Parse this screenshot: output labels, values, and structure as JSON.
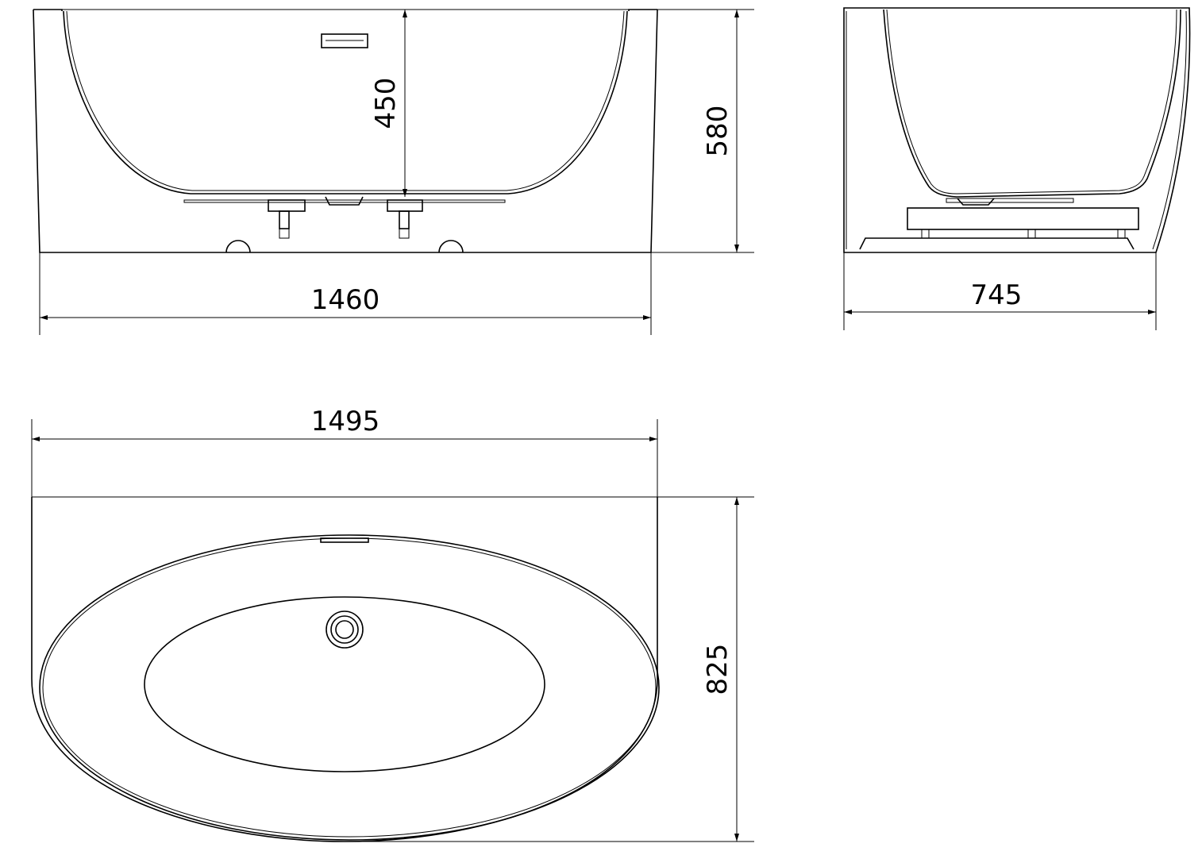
{
  "dimensions": {
    "front_inner_depth": "450",
    "front_height": "580",
    "front_length": "1460",
    "side_width": "745",
    "top_length": "1495",
    "top_width": "825"
  },
  "colors": {
    "line": "#000000",
    "background": "#ffffff"
  }
}
